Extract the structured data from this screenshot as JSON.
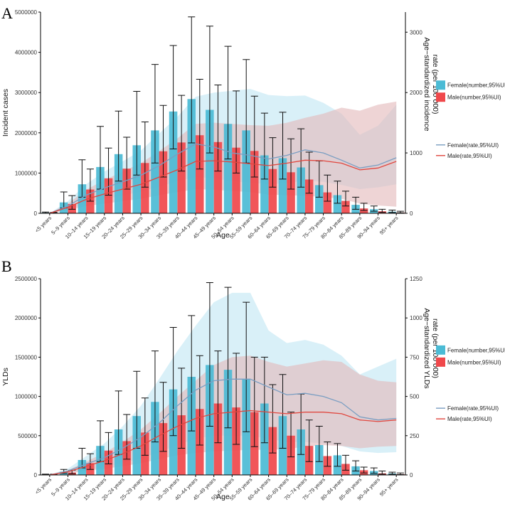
{
  "colors": {
    "female_bar": "#4BBBD5",
    "male_bar": "#F0484B",
    "female_line": "#7A9EC2",
    "male_line": "#E0473F",
    "female_band": "#BFE6F3",
    "male_band": "#E3B7B9"
  },
  "chart_data": [
    {
      "panel": "A",
      "type": "bar",
      "ylabel": "Incident cases",
      "y2label": "Age−standardized incidence rate (per 100 000)",
      "y2label_lines": [
        "Age−standardized incidence",
        "rate (per 100 000)"
      ],
      "xlabel": "Age",
      "ylim": [
        0,
        5000000
      ],
      "yticks": [
        0,
        1000000,
        2000000,
        3000000,
        4000000,
        5000000
      ],
      "ytick_labels": [
        "0",
        "1000000",
        "2000000",
        "3000000",
        "4000000",
        "5000000"
      ],
      "y2lim": [
        0,
        3333
      ],
      "y2ticks": [
        0,
        1000,
        2000,
        3000
      ],
      "y2tick_labels": [
        "0",
        "1000",
        "2000",
        "3000"
      ],
      "categories": [
        "<5 years",
        "5–9 years",
        "10–14 years",
        "15–19 years",
        "20–24 years",
        "25–29 years",
        "30–34 years",
        "35–39 years",
        "40–44 years",
        "45–49 years",
        "50–54 years",
        "55–59 years",
        "60–64 years",
        "65–69 years",
        "70–74 years",
        "75–79 years",
        "80–84 years",
        "85–89 years",
        "90–94 years",
        "95+ years"
      ],
      "legend_bars": [
        "Female(number,95%UI)",
        "Male(number,95%UI)"
      ],
      "legend_lines": [
        "Female(rate,95%UI)",
        "Male(rate,95%UI)"
      ],
      "series": [
        {
          "name": "Female(number,95%UI)",
          "kind": "bar",
          "values": [
            15000,
            270000,
            720000,
            1150000,
            1470000,
            1690000,
            2060000,
            2530000,
            2840000,
            2570000,
            2220000,
            2060000,
            1440000,
            1370000,
            1140000,
            700000,
            450000,
            210000,
            100000,
            40000
          ],
          "lower": [
            5000,
            130000,
            400000,
            600000,
            800000,
            950000,
            1250000,
            1600000,
            1750000,
            1500000,
            1350000,
            1250000,
            850000,
            850000,
            650000,
            400000,
            250000,
            100000,
            50000,
            20000
          ],
          "upper": [
            30000,
            530000,
            1330000,
            2160000,
            2540000,
            3030000,
            3700000,
            4170000,
            4880000,
            4650000,
            4150000,
            3820000,
            2490000,
            2510000,
            2100000,
            1300000,
            800000,
            400000,
            180000,
            80000
          ]
        },
        {
          "name": "Male(number,95%UI)",
          "kind": "bar",
          "values": [
            15000,
            230000,
            590000,
            870000,
            1110000,
            1250000,
            1540000,
            1760000,
            1940000,
            1770000,
            1630000,
            1550000,
            1100000,
            1020000,
            840000,
            520000,
            310000,
            120000,
            50000,
            20000
          ],
          "lower": [
            5000,
            100000,
            300000,
            450000,
            600000,
            650000,
            900000,
            1050000,
            1100000,
            1050000,
            1000000,
            900000,
            650000,
            600000,
            500000,
            300000,
            180000,
            70000,
            25000,
            10000
          ],
          "upper": [
            25000,
            440000,
            1100000,
            1620000,
            1890000,
            2270000,
            2680000,
            2930000,
            3330000,
            3190000,
            3040000,
            2910000,
            1880000,
            1850000,
            1520000,
            950000,
            550000,
            250000,
            100000,
            50000
          ]
        },
        {
          "name": "Female(rate,95%UI)",
          "kind": "line",
          "values": [
            0,
            120,
            300,
            420,
            520,
            630,
            790,
            980,
            1150,
            1100,
            1000,
            960,
            900,
            960,
            1050,
            1000,
            880,
            750,
            800,
            920
          ],
          "lower": [
            0,
            60,
            170,
            240,
            290,
            360,
            440,
            530,
            600,
            580,
            530,
            510,
            480,
            500,
            540,
            520,
            470,
            400,
            430,
            480
          ],
          "upper": [
            0,
            200,
            480,
            690,
            860,
            1040,
            1320,
            1600,
            1930,
            2000,
            2030,
            2060,
            1960,
            1940,
            1950,
            1830,
            1650,
            1300,
            1450,
            1800
          ]
        },
        {
          "name": "Male(rate,95%UI)",
          "kind": "line",
          "values": [
            0,
            100,
            230,
            320,
            400,
            480,
            600,
            720,
            860,
            870,
            850,
            820,
            790,
            830,
            880,
            870,
            830,
            720,
            750,
            860
          ],
          "lower": [
            0,
            50,
            120,
            160,
            200,
            240,
            300,
            350,
            400,
            390,
            370,
            350,
            310,
            300,
            290,
            270,
            240,
            160,
            130,
            110
          ],
          "upper": [
            0,
            160,
            390,
            550,
            690,
            830,
            1030,
            1240,
            1480,
            1500,
            1480,
            1460,
            1450,
            1500,
            1580,
            1650,
            1750,
            1700,
            1800,
            1850
          ]
        }
      ]
    },
    {
      "panel": "B",
      "type": "bar",
      "ylabel": "YLDs",
      "y2label": "Age−standardized YLDs rate (per 100 000)",
      "y2label_lines": [
        "Age−standardized YLDs",
        "rate (per 100 000)"
      ],
      "xlabel": "Age",
      "ylim": [
        0,
        2500000
      ],
      "yticks": [
        0,
        500000,
        1000000,
        1500000,
        2000000,
        2500000
      ],
      "ytick_labels": [
        "0",
        "500000",
        "1000000",
        "1500000",
        "2000000",
        "2500000"
      ],
      "y2lim": [
        0,
        1250
      ],
      "y2ticks": [
        0,
        250,
        500,
        750,
        1000,
        1250
      ],
      "y2tick_labels": [
        "0",
        "250",
        "500",
        "750",
        "1000",
        "1250"
      ],
      "categories": [
        "<5 years",
        "5–9 years",
        "10–14 years",
        "15–19 years",
        "20–24 years",
        "25–29 years",
        "30–34 years",
        "35–39 years",
        "40–44 years",
        "45–49 years",
        "50–54 years",
        "55–59 years",
        "60–64 years",
        "65–69 years",
        "70–74 years",
        "75–79 years",
        "80–84 years",
        "85–89 years",
        "90–94 years",
        "95+ years"
      ],
      "legend_bars": [
        "Female(number,95%UI)",
        "Male(number,95%UI)"
      ],
      "legend_lines": [
        "Female(rate,95%UI)",
        "Male(rate,95%UI)"
      ],
      "series": [
        {
          "name": "Female(number,95%UI)",
          "kind": "bar",
          "values": [
            5000,
            40000,
            190000,
            370000,
            580000,
            750000,
            930000,
            1090000,
            1250000,
            1400000,
            1340000,
            1220000,
            910000,
            750000,
            580000,
            380000,
            250000,
            110000,
            50000,
            20000
          ],
          "lower": [
            2000,
            20000,
            90000,
            170000,
            260000,
            340000,
            420000,
            500000,
            560000,
            620000,
            600000,
            550000,
            410000,
            340000,
            260000,
            170000,
            110000,
            50000,
            20000,
            10000
          ],
          "upper": [
            10000,
            70000,
            340000,
            690000,
            1070000,
            1320000,
            1580000,
            1880000,
            2030000,
            2450000,
            2390000,
            2200000,
            1500000,
            1280000,
            1030000,
            620000,
            400000,
            180000,
            90000,
            35000
          ]
        },
        {
          "name": "Male(number,95%UI)",
          "kind": "bar",
          "values": [
            5000,
            30000,
            150000,
            310000,
            430000,
            540000,
            660000,
            760000,
            840000,
            910000,
            860000,
            800000,
            610000,
            500000,
            370000,
            240000,
            140000,
            60000,
            20000,
            10000
          ],
          "lower": [
            2000,
            15000,
            70000,
            140000,
            200000,
            250000,
            300000,
            340000,
            380000,
            410000,
            390000,
            360000,
            280000,
            230000,
            170000,
            110000,
            60000,
            25000,
            10000,
            5000
          ],
          "upper": [
            10000,
            60000,
            270000,
            540000,
            770000,
            980000,
            1180000,
            1360000,
            1520000,
            1580000,
            1550000,
            1500000,
            1150000,
            800000,
            700000,
            420000,
            250000,
            100000,
            50000,
            25000
          ]
        },
        {
          "name": "Female(rate,95%UI)",
          "kind": "line",
          "values": [
            0,
            25,
            70,
            110,
            170,
            240,
            330,
            440,
            540,
            600,
            610,
            610,
            560,
            510,
            520,
            500,
            460,
            370,
            350,
            360
          ],
          "lower": [
            0,
            10,
            30,
            50,
            75,
            105,
            145,
            190,
            230,
            250,
            250,
            250,
            230,
            210,
            210,
            200,
            185,
            150,
            140,
            145
          ],
          "upper": [
            0,
            40,
            120,
            200,
            310,
            440,
            610,
            790,
            950,
            1100,
            1160,
            1160,
            920,
            840,
            860,
            830,
            760,
            640,
            690,
            740
          ]
        },
        {
          "name": "Male(rate,95%UI)",
          "kind": "line",
          "values": [
            0,
            20,
            55,
            90,
            135,
            185,
            250,
            310,
            360,
            390,
            400,
            410,
            400,
            390,
            400,
            400,
            390,
            350,
            340,
            350
          ],
          "lower": [
            0,
            10,
            25,
            40,
            55,
            75,
            100,
            125,
            140,
            150,
            155,
            160,
            160,
            165,
            180,
            190,
            185,
            170,
            180,
            185
          ],
          "upper": [
            0,
            30,
            85,
            140,
            210,
            290,
            390,
            500,
            600,
            700,
            750,
            760,
            720,
            690,
            710,
            730,
            720,
            640,
            600,
            590
          ]
        }
      ]
    }
  ]
}
